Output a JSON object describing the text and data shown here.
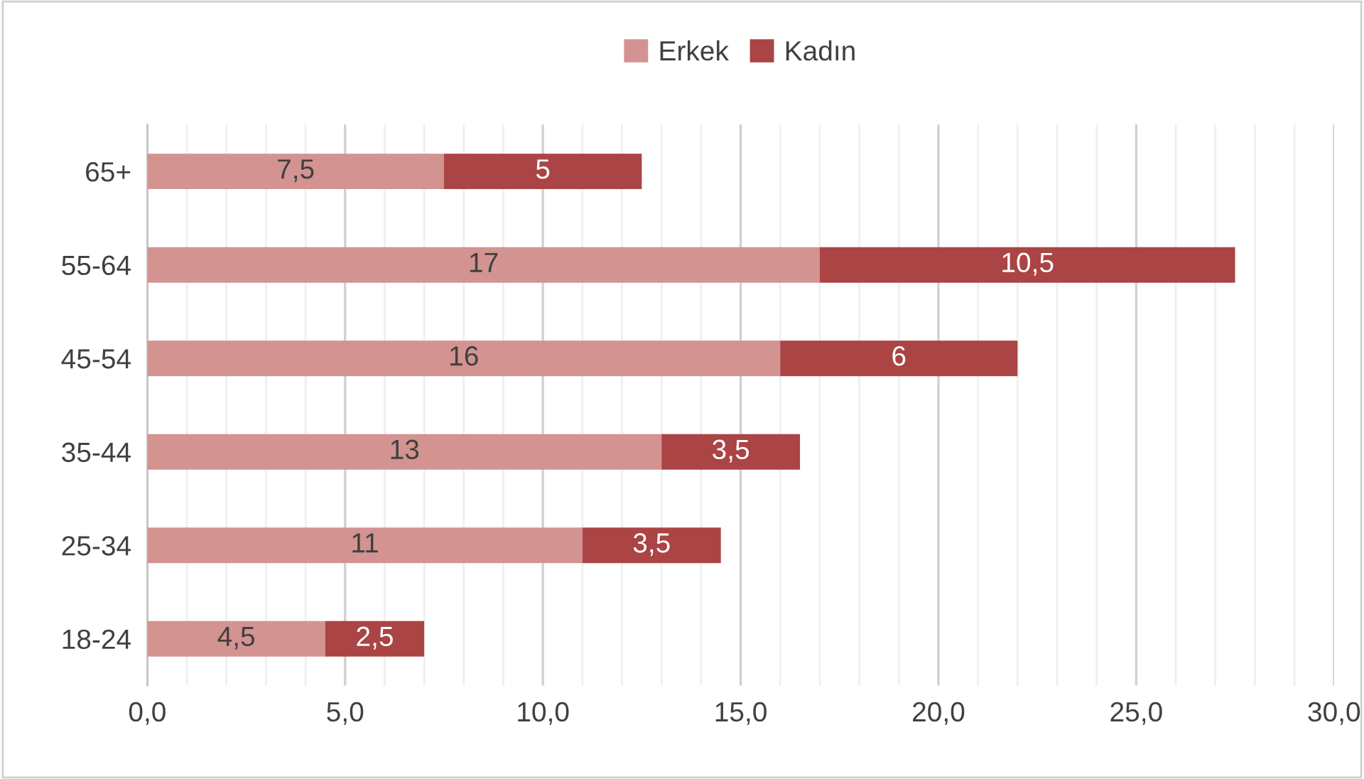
{
  "chart_data": {
    "type": "bar",
    "orientation": "horizontal",
    "stacked": true,
    "categories": [
      "65+",
      "55-64",
      "45-54",
      "35-44",
      "25-34",
      "18-24"
    ],
    "series": [
      {
        "name": "Erkek",
        "color": "#d39391",
        "values": [
          7.5,
          17,
          16,
          13,
          11,
          4.5
        ],
        "value_labels": [
          "7,5",
          "17",
          "16",
          "13",
          "11",
          "4,5"
        ]
      },
      {
        "name": "Kadın",
        "color": "#ab4444",
        "values": [
          5,
          10.5,
          6,
          3.5,
          3.5,
          2.5
        ],
        "value_labels": [
          "5",
          "10,5",
          "6",
          "3,5",
          "3,5",
          "2,5"
        ]
      }
    ],
    "xlim": [
      0,
      30
    ],
    "xticks": [
      {
        "value": 0,
        "label": "0,0"
      },
      {
        "value": 1,
        "label": null
      },
      {
        "value": 2,
        "label": null
      },
      {
        "value": 3,
        "label": null
      },
      {
        "value": 4,
        "label": null
      },
      {
        "value": 5,
        "label": "5,0"
      },
      {
        "value": 6,
        "label": null
      },
      {
        "value": 7,
        "label": null
      },
      {
        "value": 8,
        "label": null
      },
      {
        "value": 9,
        "label": null
      },
      {
        "value": 10,
        "label": "10,0"
      },
      {
        "value": 11,
        "label": null
      },
      {
        "value": 12,
        "label": null
      },
      {
        "value": 13,
        "label": null
      },
      {
        "value": 14,
        "label": null
      },
      {
        "value": 15,
        "label": "15,0"
      },
      {
        "value": 16,
        "label": null
      },
      {
        "value": 17,
        "label": null
      },
      {
        "value": 18,
        "label": null
      },
      {
        "value": 19,
        "label": null
      },
      {
        "value": 20,
        "label": "20,0"
      },
      {
        "value": 21,
        "label": null
      },
      {
        "value": 22,
        "label": null
      },
      {
        "value": 23,
        "label": null
      },
      {
        "value": 24,
        "label": null
      },
      {
        "value": 25,
        "label": "25,0"
      },
      {
        "value": 26,
        "label": null
      },
      {
        "value": 27,
        "label": null
      },
      {
        "value": 28,
        "label": null
      },
      {
        "value": 29,
        "label": null
      },
      {
        "value": 30,
        "label": "30,0"
      }
    ],
    "grid": "x",
    "legend": "top"
  }
}
